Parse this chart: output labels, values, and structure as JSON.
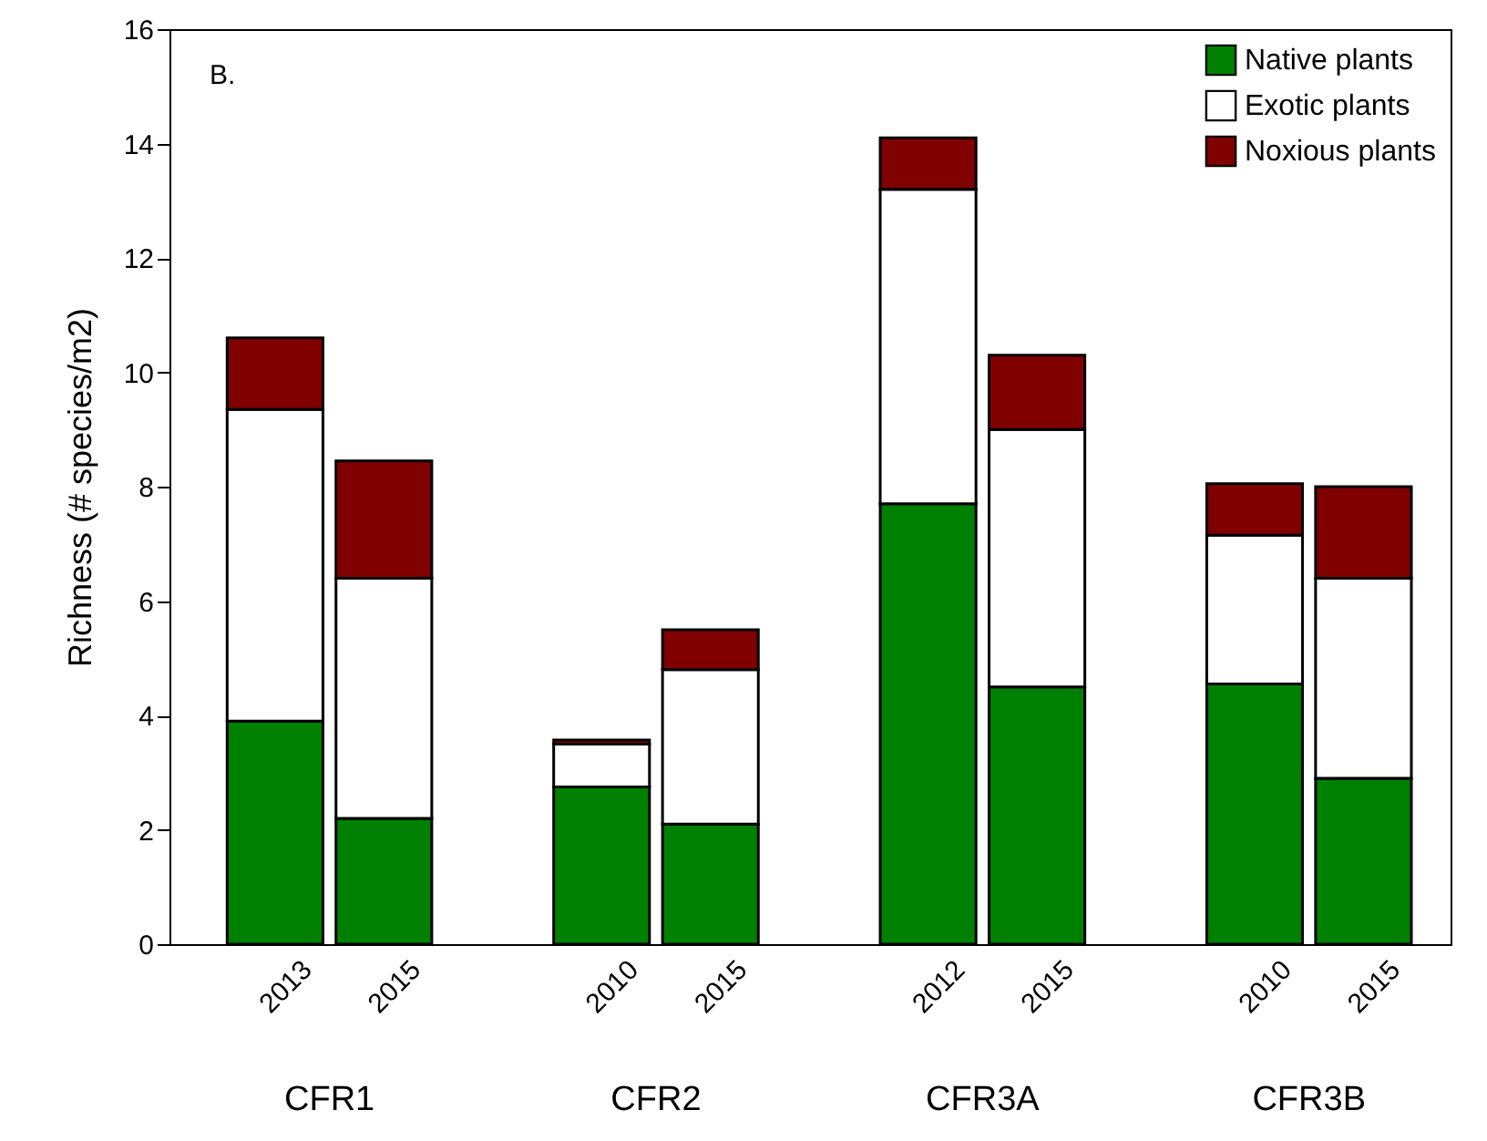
{
  "chart_data": {
    "type": "bar",
    "stacked": true,
    "title": "B.",
    "ylabel": "Richness (# species/m2)",
    "categories": [
      "2013",
      "2015",
      "2010",
      "2015",
      "2012",
      "2015",
      "2010",
      "2015"
    ],
    "series": [
      {
        "name": "Native plants",
        "color": "#008000",
        "values": [
          3.9,
          2.2,
          2.75,
          2.1,
          7.7,
          4.5,
          4.55,
          2.9
        ]
      },
      {
        "name": "Exotic plants",
        "color": "#ffffff",
        "values": [
          5.45,
          4.2,
          0.75,
          2.7,
          5.5,
          4.5,
          2.6,
          3.5
        ]
      },
      {
        "name": "Noxious plants",
        "color": "#800000",
        "values": [
          1.25,
          2.05,
          0.07,
          0.7,
          0.9,
          1.3,
          0.9,
          1.6
        ]
      }
    ],
    "ylim": [
      0,
      16
    ],
    "yticks": [
      0,
      2,
      4,
      6,
      8,
      10,
      12,
      14,
      16
    ],
    "legend": "top right",
    "annotations": [
      "CFR1",
      "CFR2",
      "CFR3A",
      "CFR3B"
    ]
  }
}
